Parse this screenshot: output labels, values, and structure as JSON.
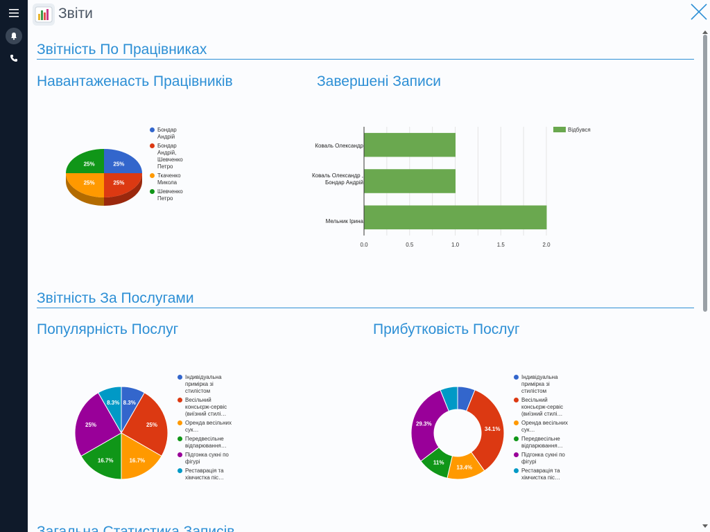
{
  "window": {
    "title": "Звіти"
  },
  "sidebar": {
    "menu_icon": "menu-icon",
    "bell_icon": "bell-icon",
    "phone_icon": "phone-icon"
  },
  "sections": {
    "employees": "Звітність По Працівниках",
    "services": "Звітність За Послугами",
    "general": "Загальна Статистика Записів"
  },
  "colors": {
    "blue": "#3366cc",
    "red": "#dc3912",
    "orange": "#ff9900",
    "green": "#109618",
    "purple": "#990099",
    "cyan": "#0099c6",
    "bar": "#6aa84f",
    "accent": "#2d8fd5"
  },
  "chart_data": [
    {
      "type": "pie",
      "title": "Навантаженасть Працівників",
      "series": [
        {
          "name": "Бондар Андрій",
          "value": 25,
          "label": "25%",
          "color": "#3366cc"
        },
        {
          "name": "Бондар Андрій, Шевченко Петро",
          "value": 25,
          "label": "25%",
          "color": "#dc3912"
        },
        {
          "name": "Ткаченко Микола",
          "value": 25,
          "label": "25%",
          "color": "#ff9900"
        },
        {
          "name": "Шевченко Петро",
          "value": 25,
          "label": "25%",
          "color": "#109618"
        }
      ],
      "legend_position": "right"
    },
    {
      "type": "bar",
      "title": "Завершені Записи",
      "categories": [
        "Коваль Олександр",
        "Коваль Олександр , Бондар Андрій",
        "Мельник Ірина"
      ],
      "series": [
        {
          "name": "Відбувся",
          "values": [
            1,
            1,
            2
          ]
        }
      ],
      "xlim": [
        0,
        2
      ],
      "xticks": [
        "0.0",
        "0.5",
        "1.0",
        "1.5",
        "2.0"
      ],
      "grid": true,
      "legend_position": "top-right"
    },
    {
      "type": "pie",
      "title": "Популярність Послуг",
      "series": [
        {
          "name": "Індивідуальна примірка зі стилістом",
          "value": 8.3,
          "label": "8.3%",
          "color": "#3366cc"
        },
        {
          "name": "Весільний консьєрж-сервіс (виїзний стилі…",
          "value": 25,
          "label": "25%",
          "color": "#dc3912"
        },
        {
          "name": "Оренда весільних сук…",
          "value": 16.7,
          "label": "16.7%",
          "color": "#ff9900"
        },
        {
          "name": "Передвесільне відпарювання…",
          "value": 16.7,
          "label": "16.7%",
          "color": "#109618"
        },
        {
          "name": "Підгонка сукні по фігурі",
          "value": 25,
          "label": "25%",
          "color": "#990099"
        },
        {
          "name": "Реставрація та хімчистка піс…",
          "value": 8.3,
          "label": "8.3%",
          "color": "#0099c6"
        }
      ],
      "legend_position": "right"
    },
    {
      "type": "pie",
      "subtype": "donut",
      "title": "Прибутковість Послуг",
      "series": [
        {
          "name": "Індивідуальна примірка зі стилістом",
          "value": 6.1,
          "label": "",
          "color": "#3366cc"
        },
        {
          "name": "Весільний консьєрж-сервіс (виїзний стилі…",
          "value": 34.1,
          "label": "34.1%",
          "color": "#dc3912"
        },
        {
          "name": "Оренда весільних сук…",
          "value": 13.4,
          "label": "13.4%",
          "color": "#ff9900"
        },
        {
          "name": "Передвесільне відпарювання…",
          "value": 11,
          "label": "11%",
          "color": "#109618"
        },
        {
          "name": "Підгонка сукні по фігурі",
          "value": 29.3,
          "label": "29.3%",
          "color": "#990099"
        },
        {
          "name": "Реставрація та хімчистка піс…",
          "value": 6.1,
          "label": "",
          "color": "#0099c6"
        }
      ],
      "legend_position": "right"
    }
  ]
}
